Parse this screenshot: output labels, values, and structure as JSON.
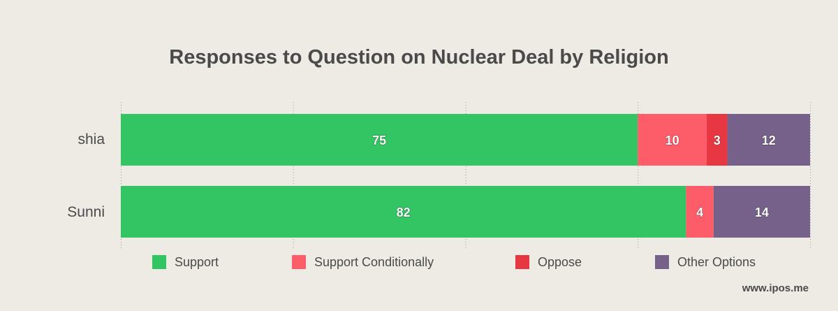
{
  "chart_data": {
    "type": "bar",
    "orientation": "horizontal",
    "stacked": true,
    "title": "Responses to Question on Nuclear Deal by Religion",
    "categories": [
      "shia",
      "Sunni"
    ],
    "series": [
      {
        "name": "Support",
        "color": "#33c463",
        "values": [
          75,
          82
        ]
      },
      {
        "name": "Support Conditionally",
        "color": "#fd5c69",
        "values": [
          10,
          4
        ]
      },
      {
        "name": "Oppose",
        "color": "#e63742",
        "values": [
          3,
          0
        ]
      },
      {
        "name": "Other Options",
        "color": "#76618a",
        "values": [
          12,
          14
        ]
      }
    ],
    "xlim": [
      0,
      100
    ],
    "grid": true,
    "legend": "bottom"
  },
  "watermark": "www.ipos.me"
}
